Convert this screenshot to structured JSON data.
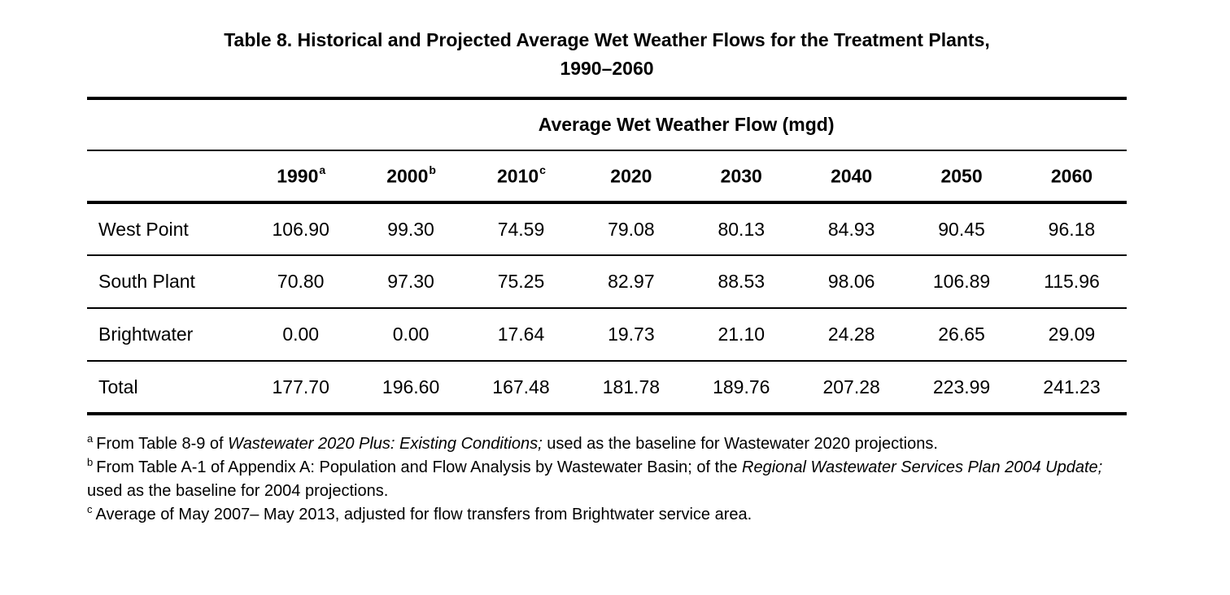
{
  "title": {
    "line1": "Table 8. Historical and Projected Average Wet Weather Flows for the Treatment Plants,",
    "line2": "1990–2060"
  },
  "table": {
    "span_header": "Average Wet Weather Flow (mgd)",
    "columns": [
      {
        "year": "1990",
        "note": "a"
      },
      {
        "year": "2000",
        "note": "b"
      },
      {
        "year": "2010",
        "note": "c"
      },
      {
        "year": "2020",
        "note": ""
      },
      {
        "year": "2030",
        "note": ""
      },
      {
        "year": "2040",
        "note": ""
      },
      {
        "year": "2050",
        "note": ""
      },
      {
        "year": "2060",
        "note": ""
      }
    ],
    "rows": [
      {
        "label": "West Point",
        "values": [
          "106.90",
          "99.30",
          "74.59",
          "79.08",
          "80.13",
          "84.93",
          "90.45",
          "96.18"
        ]
      },
      {
        "label": "South Plant",
        "values": [
          "70.80",
          "97.30",
          "75.25",
          "82.97",
          "88.53",
          "98.06",
          "106.89",
          "115.96"
        ]
      },
      {
        "label": "Brightwater",
        "values": [
          "0.00",
          "0.00",
          "17.64",
          "19.73",
          "21.10",
          "24.28",
          "26.65",
          "29.09"
        ]
      },
      {
        "label": "Total",
        "values": [
          "177.70",
          "196.60",
          "167.48",
          "181.78",
          "189.76",
          "207.28",
          "223.99",
          "241.23"
        ]
      }
    ]
  },
  "footnotes": [
    {
      "marker": "a",
      "seg1": "From Table 8-9 of ",
      "seg2_italic": "Wastewater 2020 Plus: Existing Conditions;",
      "seg3": " used as the baseline for Wastewater 2020 projections."
    },
    {
      "marker": "b",
      "seg1": "From Table A-1 of Appendix A: Population and Flow Analysis by Wastewater Basin; of the ",
      "seg2_italic": "Regional Wastewater Services Plan 2004 Update;",
      "seg3": " used as the baseline for 2004 projections."
    },
    {
      "marker": "c",
      "seg1": "Average of May 2007– May 2013, adjusted for flow transfers from Brightwater service area.",
      "seg2_italic": "",
      "seg3": ""
    }
  ],
  "colors": {
    "text": "#000000",
    "background": "#ffffff",
    "rule": "#000000"
  }
}
